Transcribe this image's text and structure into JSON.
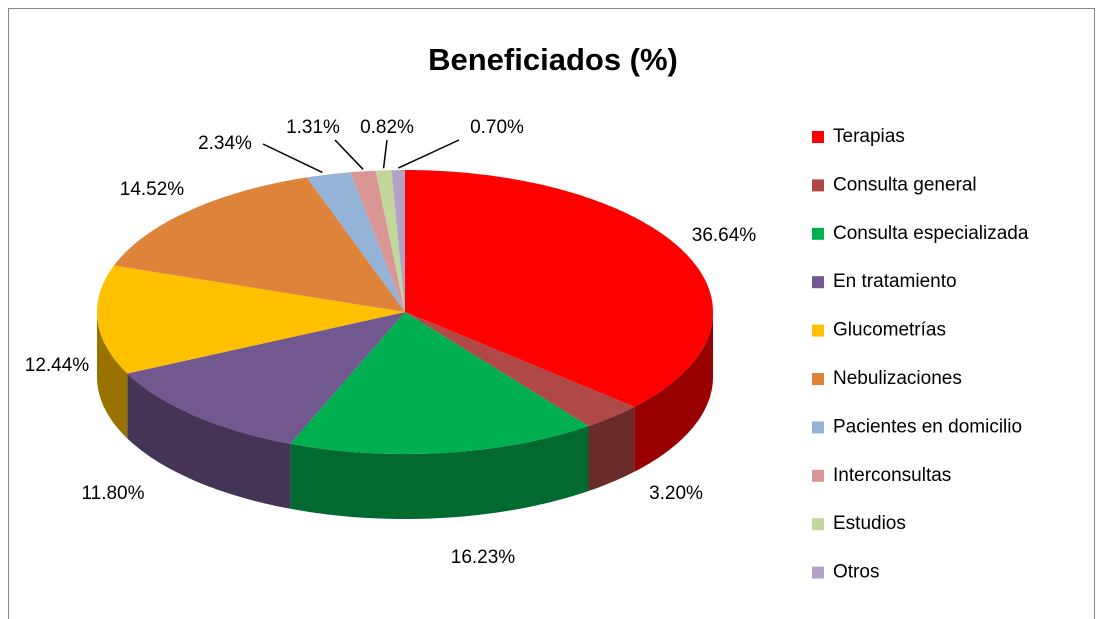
{
  "chart_data": {
    "type": "pie",
    "title": "Beneficiados (%)",
    "categories": [
      "Terapias",
      "Consulta general",
      "Consulta especializada",
      "En tratamiento",
      "Glucometrías",
      "Nebulizaciones",
      "Pacientes en domicilio",
      "Interconsultas",
      "Estudios",
      "Otros"
    ],
    "values": [
      36.64,
      3.2,
      16.23,
      11.8,
      12.44,
      14.52,
      2.34,
      1.31,
      0.82,
      0.7
    ],
    "value_labels": [
      "36.64%",
      "3.20%",
      "16.23%",
      "11.80%",
      "12.44%",
      "14.52%",
      "2.34%",
      "1.31%",
      "0.82%",
      "0.70%"
    ],
    "colors": [
      "#ff0000",
      "#b04848",
      "#00b050",
      "#71588f",
      "#ffc000",
      "#dd843a",
      "#95b3d7",
      "#d99694",
      "#c3d69b",
      "#b3a2c7"
    ],
    "legend": "right"
  }
}
